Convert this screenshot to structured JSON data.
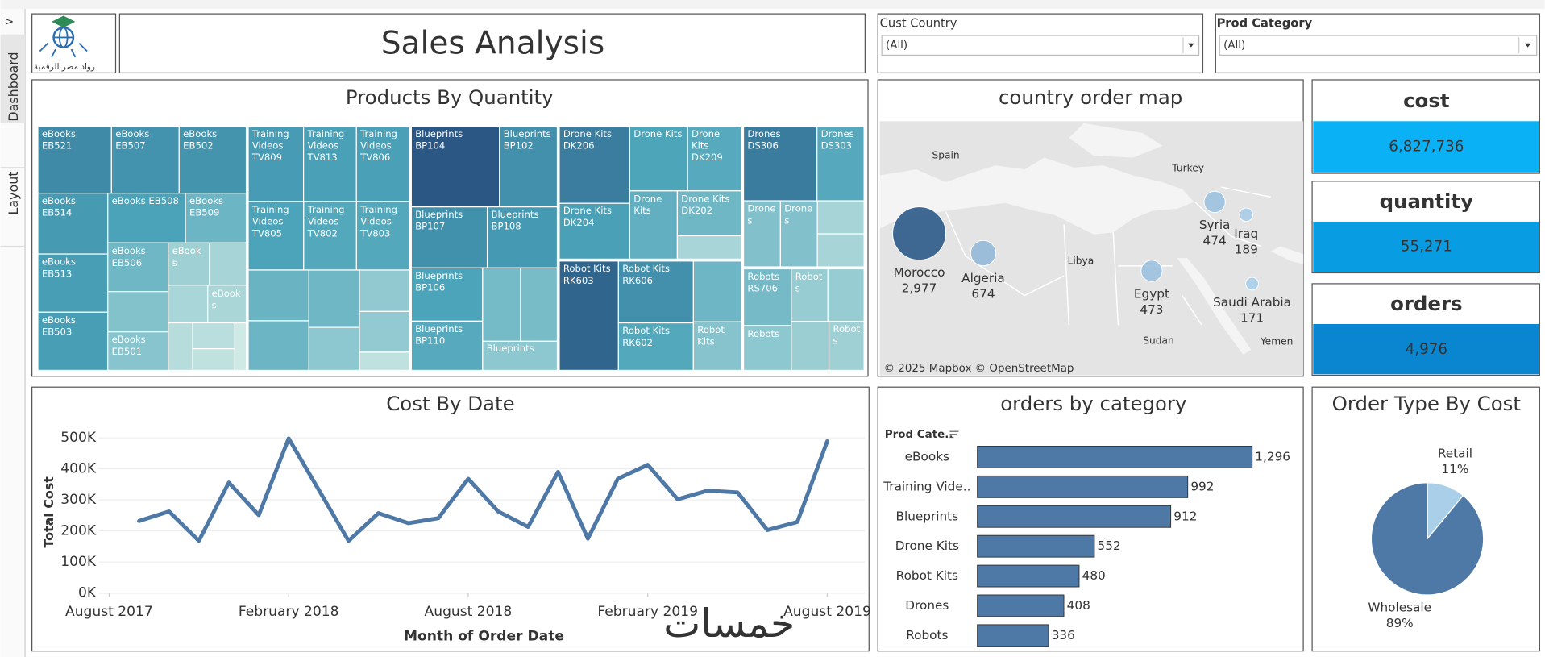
{
  "sidebar": {
    "toggle": ">",
    "tabs": [
      "Dashboard",
      "Layout"
    ]
  },
  "header": {
    "title": "Sales Analysis",
    "logo_text": "رواد مصر الرقمية"
  },
  "filters": [
    {
      "label": "Cust Country",
      "value": "(All)"
    },
    {
      "label": "Prod Category",
      "value": "(All)"
    }
  ],
  "kpis": [
    {
      "title": "cost",
      "value": "6,827,736",
      "color": "#0ab1f5"
    },
    {
      "title": "quantity",
      "value": "55,271",
      "color": "#089de3"
    },
    {
      "title": "orders",
      "value": "4,976",
      "color": "#0a86d0"
    }
  ],
  "watermark": "خمسات",
  "chart_data": [
    {
      "type": "treemap",
      "title": "Products By Quantity",
      "colors": [
        "#cfeae4",
        "#4aa3b9",
        "#2a5783"
      ],
      "groups": [
        {
          "tiles": [
            {
              "label": "eBooks EB521",
              "value": 1360
            },
            {
              "label": "eBooks EB507",
              "value": 1250
            },
            {
              "label": "eBooks EB502",
              "value": 1240
            },
            {
              "label": "eBooks EB514",
              "value": 1170
            },
            {
              "label": "eBooks EB513",
              "value": 1120
            },
            {
              "label": "eBooks EB503",
              "value": 1120
            },
            {
              "label": "eBooks EB508",
              "value": 1060
            },
            {
              "label": "eBooks EB509",
              "value": 830
            },
            {
              "label": "eBooks EB506",
              "value": 810
            },
            {
              "label": null,
              "value": 670
            },
            {
              "label": "eBooks EB501",
              "value": 640
            },
            {
              "label": "eBooks",
              "value": 480
            },
            {
              "label": null,
              "value": 430
            },
            {
              "label": null,
              "value": 410
            },
            {
              "label": "eBooks",
              "value": 400
            },
            {
              "label": null,
              "value": 320
            },
            {
              "label": null,
              "value": 300
            },
            {
              "label": null,
              "value": 250
            },
            {
              "label": null,
              "value": 150
            }
          ]
        },
        {
          "tiles": [
            {
              "label": "Training Videos TV809",
              "value": 1150
            },
            {
              "label": "Training Videos TV813",
              "value": 1100
            },
            {
              "label": "Training Videos TV806",
              "value": 1100
            },
            {
              "label": "Training Videos TV805",
              "value": 1050
            },
            {
              "label": "Training Videos TV802",
              "value": 1000
            },
            {
              "label": "Training Videos TV803",
              "value": 1000
            },
            {
              "label": null,
              "value": 850
            },
            {
              "label": null,
              "value": 830
            },
            {
              "label": null,
              "value": 800
            },
            {
              "label": null,
              "value": 600
            },
            {
              "label": null,
              "value": 570
            },
            {
              "label": null,
              "value": 560
            },
            {
              "label": null,
              "value": 250
            }
          ]
        },
        {
          "tiles": [
            {
              "label": "Blueprints BP104",
              "value": 1970
            },
            {
              "label": "Blueprints BP102",
              "value": 1290
            },
            {
              "label": "Blueprints BP107",
              "value": 1280
            },
            {
              "label": "Blueprints BP108",
              "value": 1180
            },
            {
              "label": "Blueprints BP106",
              "value": 1050
            },
            {
              "label": "Blueprints BP110",
              "value": 970
            },
            {
              "label": null,
              "value": 770
            },
            {
              "label": null,
              "value": 745
            },
            {
              "label": "Blueprints",
              "value": 600
            }
          ]
        },
        {
          "tiles": [
            {
              "label": "Drone Kits DK206",
              "value": 1510
            },
            {
              "label": "Drone Kits DK204",
              "value": 1090
            },
            {
              "label": "Drone Kits",
              "value": 1040
            },
            {
              "label": "Drone Kits DK209",
              "value": 970
            },
            {
              "label": "Drone Kits",
              "value": 900
            },
            {
              "label": "Drone Kits DK202",
              "value": 800
            },
            {
              "label": null,
              "value": 415
            }
          ]
        },
        {
          "tiles": [
            {
              "label": "Robot Kits RK603",
              "value": 1800
            },
            {
              "label": "Robot Kits RK606",
              "value": 1290
            },
            {
              "label": "Robot Kits RK602",
              "value": 990
            },
            {
              "label": null,
              "value": 815
            },
            {
              "label": "Robot Kits",
              "value": 650
            }
          ]
        },
        {
          "tiles": [
            {
              "label": "Drones DS306",
              "value": 1530
            },
            {
              "label": "Drones DS303",
              "value": 980
            },
            {
              "label": "Drones",
              "value": 680
            },
            {
              "label": "Drones",
              "value": 680
            },
            {
              "label": null,
              "value": 430
            },
            {
              "label": null,
              "value": 430
            }
          ]
        },
        {
          "tiles": [
            {
              "label": "Robots RS706",
              "value": 760
            },
            {
              "label": "Robots",
              "value": 600
            },
            {
              "label": "Robots",
              "value": 540
            },
            {
              "label": null,
              "value": 535
            },
            {
              "label": null,
              "value": 515
            },
            {
              "label": "Robots",
              "value": 480
            }
          ]
        }
      ]
    },
    {
      "type": "map",
      "title": "country order map",
      "colors": [
        "#a9cde9",
        "#2b5a88"
      ],
      "categories": [
        "Morocco",
        "Algeria",
        "Egypt",
        "Syria",
        "Iraq",
        "Saudi Arabia"
      ],
      "values": [
        2977,
        674,
        473,
        474,
        189,
        171
      ],
      "value_labels": [
        "2,977",
        "674",
        "473",
        "474",
        "189",
        "171"
      ],
      "map_labels": [
        "Spain",
        "Turkey",
        "Libya",
        "Sudan",
        "Yemen"
      ],
      "attribution": "© 2025 Mapbox © OpenStreetMap"
    },
    {
      "type": "line",
      "title": "Cost By Date",
      "x_label": "Month of Order Date",
      "y_label": "Total Cost",
      "color": "#4e79a7",
      "grid": true,
      "x": [
        "2017-09",
        "2017-10",
        "2017-11",
        "2017-12",
        "2018-01",
        "2018-02",
        "2018-03",
        "2018-04",
        "2018-05",
        "2018-06",
        "2018-07",
        "2018-08",
        "2018-09",
        "2018-10",
        "2018-11",
        "2018-12",
        "2019-01",
        "2019-02",
        "2019-03",
        "2019-04",
        "2019-05",
        "2019-06",
        "2019-07",
        "2019-08"
      ],
      "values": [
        232000,
        263000,
        168000,
        356000,
        251000,
        498000,
        333000,
        168000,
        257000,
        225000,
        241000,
        368000,
        263000,
        213000,
        390000,
        175000,
        368000,
        413000,
        302000,
        330000,
        324000,
        203000,
        229000,
        489000
      ],
      "xlim": [
        "2017-07",
        "2019-09"
      ],
      "xticks": [
        {
          "value": "2017-08",
          "label": "August 2017"
        },
        {
          "value": "2018-02",
          "label": "February 2018"
        },
        {
          "value": "2018-08",
          "label": "August 2018"
        },
        {
          "value": "2019-02",
          "label": "February 2019"
        },
        {
          "value": "2019-08",
          "label": "August 2019"
        }
      ],
      "ylim": [
        0,
        500000
      ],
      "yticks": [
        {
          "value": 0,
          "label": "0K"
        },
        {
          "value": 100000,
          "label": "100K"
        },
        {
          "value": 200000,
          "label": "200K"
        },
        {
          "value": 300000,
          "label": "300K"
        },
        {
          "value": 400000,
          "label": "400K"
        },
        {
          "value": 500000,
          "label": "500K"
        }
      ]
    },
    {
      "type": "bar",
      "title": "orders by category",
      "field_label": "Prod Cate..",
      "color": "#4e79a7",
      "categories": [
        "eBooks",
        "Training Vide..",
        "Blueprints",
        "Drone Kits",
        "Robot Kits",
        "Drones",
        "Robots"
      ],
      "values": [
        1296,
        992,
        912,
        552,
        480,
        408,
        336
      ],
      "value_labels": [
        "1,296",
        "992",
        "912",
        "552",
        "480",
        "408",
        "336"
      ],
      "xlim": [
        0,
        1500
      ]
    },
    {
      "type": "pie",
      "title": "Order Type By Cost",
      "categories": [
        "Retail",
        "Wholesale"
      ],
      "values": [
        11,
        89
      ],
      "value_labels": [
        "11%",
        "89%"
      ],
      "colors": [
        "#a9cfe9",
        "#4e79a7"
      ]
    }
  ]
}
